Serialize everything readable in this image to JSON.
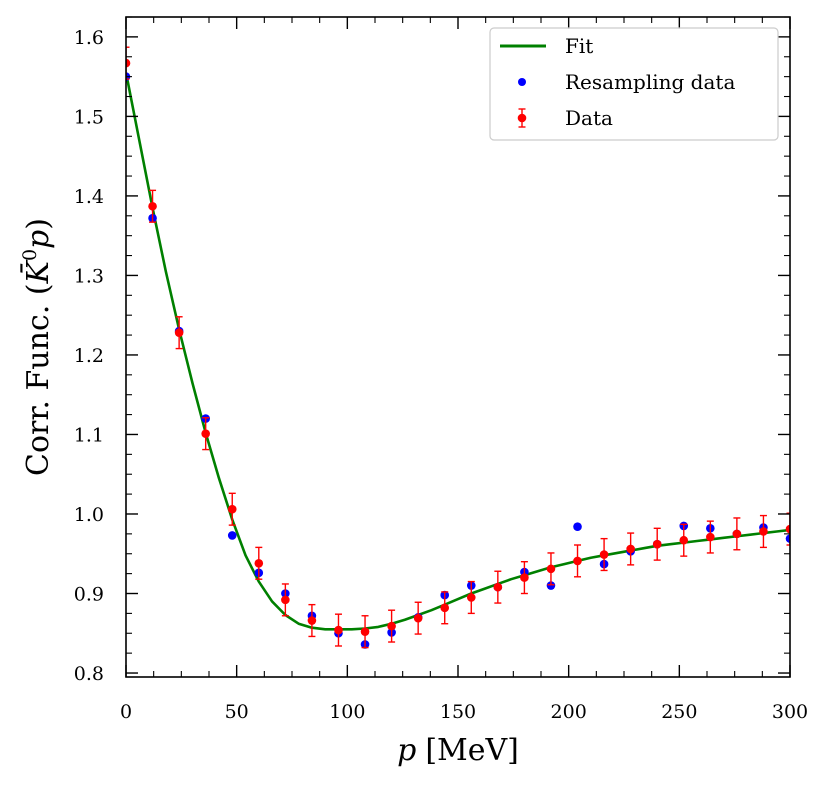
{
  "chart_data": {
    "type": "scatter",
    "title": "",
    "xlabel_var": "p",
    "xlabel_unit": "[MeV]",
    "ylabel_prefix": "Corr. Func. (",
    "ylabel_symbol": "K̄",
    "ylabel_sup": "0",
    "ylabel_var": "p",
    "ylabel_suffix": ")",
    "xlim": [
      0,
      300
    ],
    "ylim": [
      0.795,
      1.625
    ],
    "xticks": [
      0,
      50,
      100,
      150,
      200,
      250,
      300
    ],
    "yticks": [
      0.8,
      0.9,
      1.0,
      1.1,
      1.2,
      1.3,
      1.4,
      1.5,
      1.6
    ],
    "xtick_labels": [
      "0",
      "50",
      "100",
      "150",
      "200",
      "250",
      "300"
    ],
    "ytick_labels": [
      "0.8",
      "0.9",
      "1.0",
      "1.1",
      "1.2",
      "1.3",
      "1.4",
      "1.5",
      "1.6"
    ],
    "legend_position": "top-right",
    "grid": false,
    "series": [
      {
        "name": "Fit",
        "kind": "line",
        "color": "#008000",
        "x": [
          0,
          6,
          12,
          18,
          24,
          30,
          36,
          42,
          48,
          54,
          60,
          66,
          72,
          78,
          84,
          90,
          96,
          102,
          108,
          114,
          120,
          126,
          132,
          138,
          144,
          150,
          156,
          162,
          168,
          174,
          180,
          186,
          192,
          198,
          204,
          210,
          216,
          222,
          228,
          234,
          240,
          246,
          252,
          258,
          264,
          270,
          276,
          282,
          288,
          294,
          300
        ],
        "y": [
          1.555,
          1.47,
          1.385,
          1.305,
          1.232,
          1.165,
          1.102,
          1.045,
          0.993,
          0.948,
          0.915,
          0.89,
          0.873,
          0.862,
          0.857,
          0.855,
          0.855,
          0.855,
          0.856,
          0.858,
          0.862,
          0.867,
          0.873,
          0.879,
          0.886,
          0.893,
          0.9,
          0.906,
          0.912,
          0.918,
          0.923,
          0.928,
          0.933,
          0.937,
          0.941,
          0.945,
          0.948,
          0.951,
          0.954,
          0.957,
          0.96,
          0.962,
          0.964,
          0.966,
          0.968,
          0.97,
          0.972,
          0.974,
          0.976,
          0.978,
          0.98
        ]
      },
      {
        "name": "Resampling data",
        "kind": "scatter",
        "color": "#0000ff",
        "x": [
          0,
          12,
          24,
          36,
          48,
          60,
          72,
          84,
          96,
          108,
          120,
          132,
          144,
          156,
          168,
          180,
          192,
          204,
          216,
          228,
          240,
          252,
          264,
          276,
          288,
          300
        ],
        "y": [
          1.55,
          1.372,
          1.23,
          1.12,
          0.973,
          0.926,
          0.9,
          0.872,
          0.85,
          0.836,
          0.851,
          0.87,
          0.898,
          0.91,
          0.908,
          0.927,
          0.91,
          0.984,
          0.937,
          0.953,
          0.962,
          0.985,
          0.982,
          0.975,
          0.983,
          0.969
        ]
      },
      {
        "name": "Data",
        "kind": "errorbar",
        "color": "#ff0000",
        "x": [
          0,
          12,
          24,
          36,
          48,
          60,
          72,
          84,
          96,
          108,
          120,
          132,
          144,
          156,
          168,
          180,
          192,
          204,
          216,
          228,
          240,
          252,
          264,
          276,
          288,
          300
        ],
        "y": [
          1.567,
          1.387,
          1.228,
          1.101,
          1.006,
          0.938,
          0.892,
          0.866,
          0.854,
          0.852,
          0.859,
          0.869,
          0.882,
          0.895,
          0.908,
          0.92,
          0.931,
          0.941,
          0.949,
          0.956,
          0.962,
          0.967,
          0.971,
          0.975,
          0.978,
          0.981
        ],
        "err": [
          0.02,
          0.02,
          0.02,
          0.02,
          0.02,
          0.02,
          0.02,
          0.02,
          0.02,
          0.02,
          0.02,
          0.02,
          0.02,
          0.02,
          0.02,
          0.02,
          0.02,
          0.02,
          0.02,
          0.02,
          0.02,
          0.02,
          0.02,
          0.02,
          0.02,
          0.02
        ]
      }
    ]
  }
}
